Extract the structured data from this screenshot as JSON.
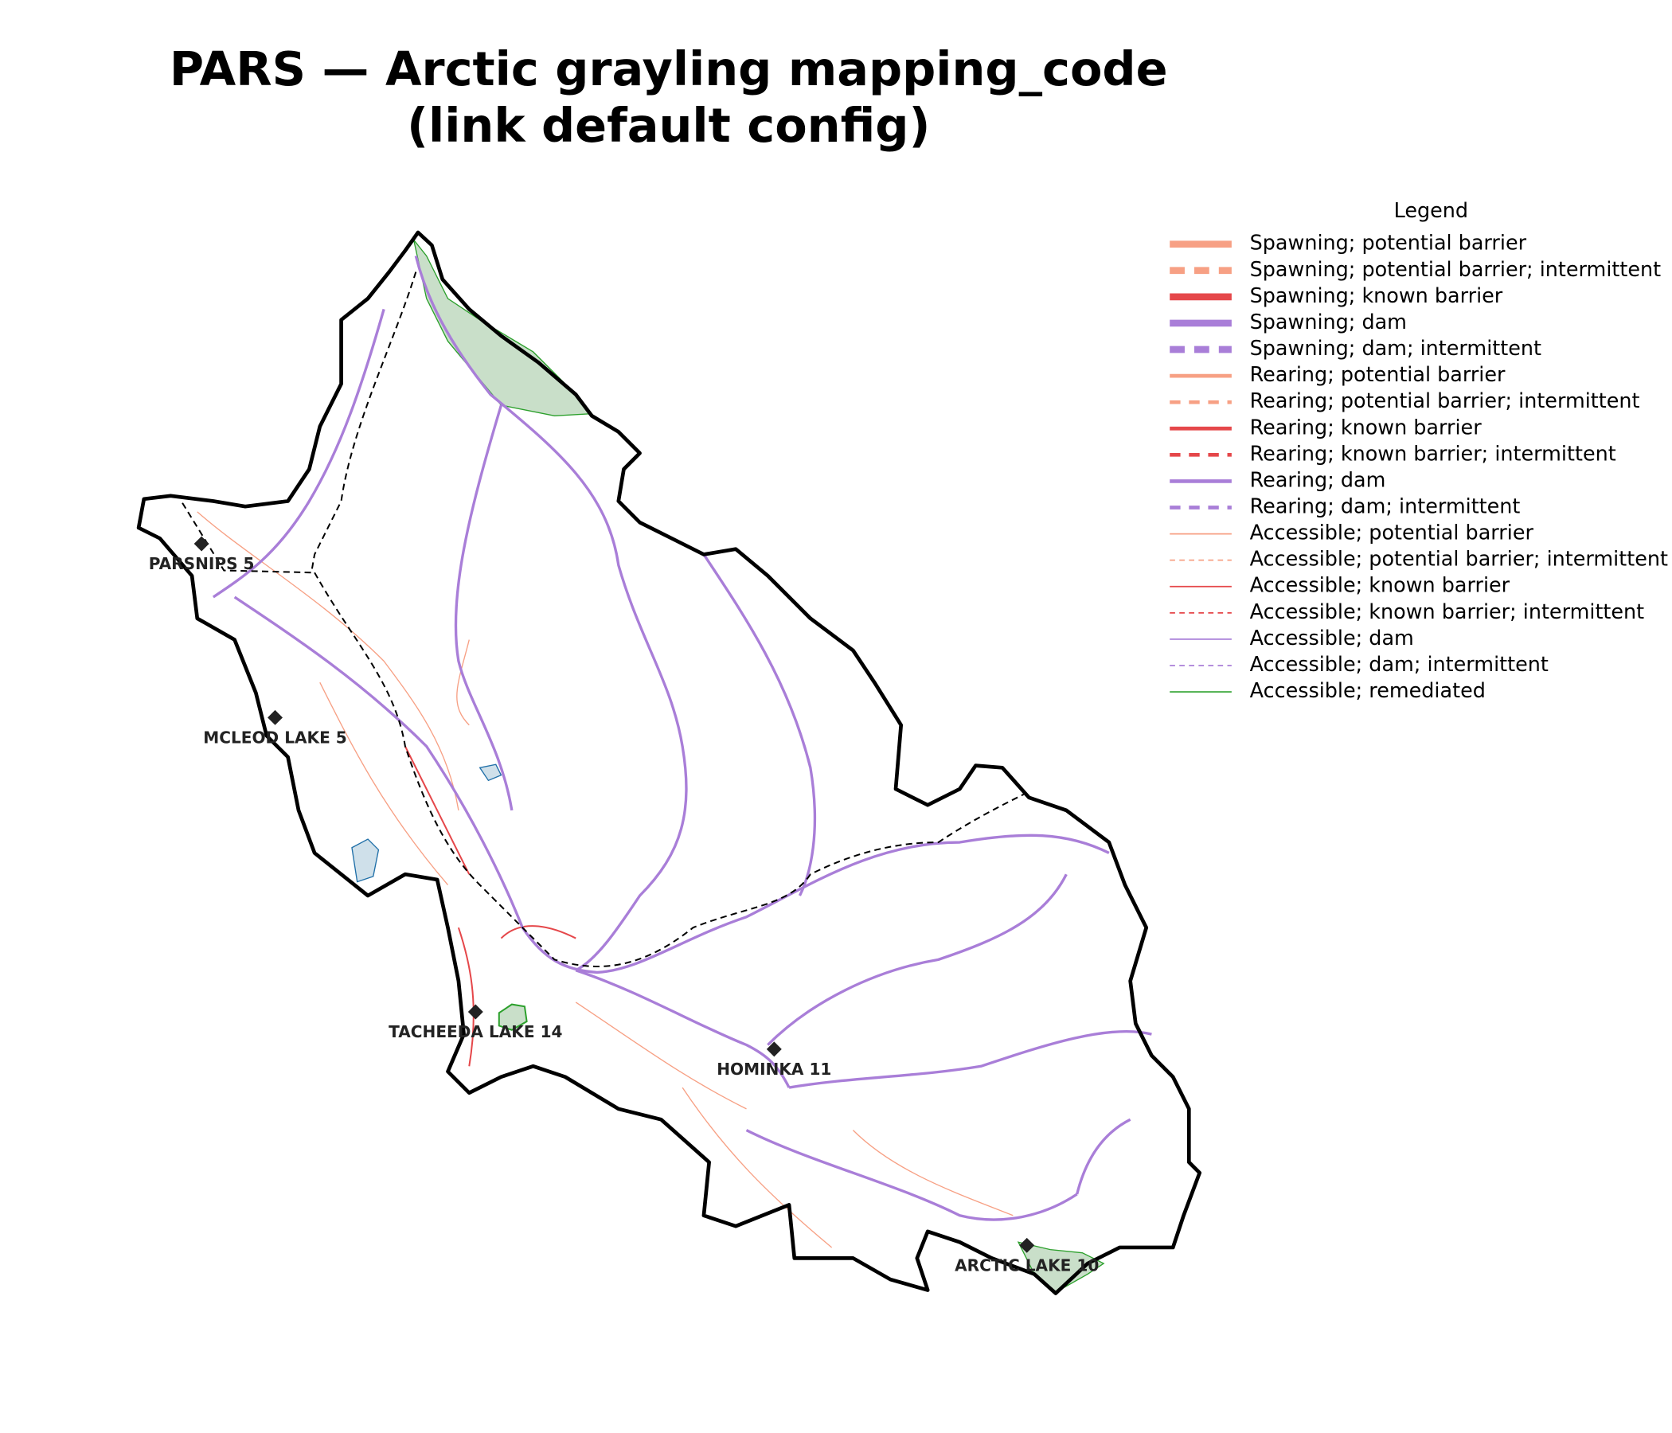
{
  "map": {
    "title": [
      "PARS — Arctic grayling mapping_code",
      "(link default config)"
    ],
    "legend": {
      "title": "Legend",
      "entries": [
        {
          "label": "Spawning; potential barrier",
          "color": "#f7a084",
          "weight": "thick",
          "dashed": false
        },
        {
          "label": "Spawning; potential barrier; intermittent",
          "color": "#f7a084",
          "weight": "thick",
          "dashed": true
        },
        {
          "label": "Spawning; known barrier",
          "color": "#e5474a",
          "weight": "thick",
          "dashed": false
        },
        {
          "label": "Spawning; dam",
          "color": "#a97ed8",
          "weight": "thick",
          "dashed": false
        },
        {
          "label": "Spawning; dam; intermittent",
          "color": "#a97ed8",
          "weight": "thick",
          "dashed": true
        },
        {
          "label": "Rearing; potential barrier",
          "color": "#f7a084",
          "weight": "medium",
          "dashed": false
        },
        {
          "label": "Rearing; potential barrier; intermittent",
          "color": "#f7a084",
          "weight": "medium",
          "dashed": true
        },
        {
          "label": "Rearing; known barrier",
          "color": "#e5474a",
          "weight": "medium",
          "dashed": false
        },
        {
          "label": "Rearing; known barrier; intermittent",
          "color": "#e5474a",
          "weight": "medium",
          "dashed": true
        },
        {
          "label": "Rearing; dam",
          "color": "#a97ed8",
          "weight": "medium",
          "dashed": false
        },
        {
          "label": "Rearing; dam; intermittent",
          "color": "#a97ed8",
          "weight": "medium",
          "dashed": true
        },
        {
          "label": "Accessible; potential barrier",
          "color": "#f7a084",
          "weight": "thin",
          "dashed": false
        },
        {
          "label": "Accessible; potential barrier; intermittent",
          "color": "#f7a084",
          "weight": "thin",
          "dashed": true
        },
        {
          "label": "Accessible; known barrier",
          "color": "#e5474a",
          "weight": "thin",
          "dashed": false
        },
        {
          "label": "Accessible; known barrier; intermittent",
          "color": "#e5474a",
          "weight": "thin",
          "dashed": true
        },
        {
          "label": "Accessible; dam",
          "color": "#a97ed8",
          "weight": "thin",
          "dashed": false
        },
        {
          "label": "Accessible; dam; intermittent",
          "color": "#a97ed8",
          "weight": "thin",
          "dashed": true
        },
        {
          "label": "Accessible; remediated",
          "color": "#2ca02c",
          "weight": "thin",
          "dashed": false
        }
      ]
    },
    "places": [
      {
        "name": "PARSNIPS 5"
      },
      {
        "name": "MCLEOD LAKE 5"
      },
      {
        "name": "TACHEEDA LAKE 14"
      },
      {
        "name": "HOMINKA 11"
      },
      {
        "name": "ARCTIC LAKE 10"
      }
    ]
  }
}
